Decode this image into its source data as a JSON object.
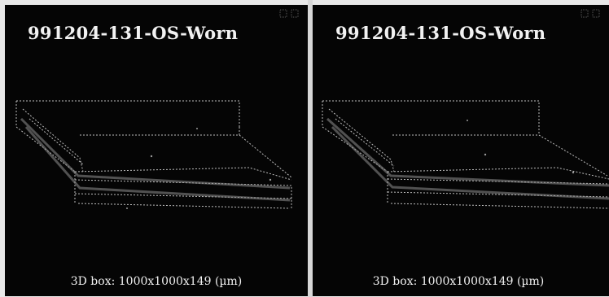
{
  "panels": [
    {
      "title": "991204-131-OS-Worn",
      "caption": "3D box: 1000x1000x149 (µm)"
    },
    {
      "title": "991204-131-OS-Worn",
      "caption": "3D box: 1000x1000x149 (µm)"
    }
  ],
  "colors": {
    "panel_background": "#050505",
    "text": "#f0f0f0",
    "wireframe": "#cfcfcf",
    "page_background": "#e9e9e9"
  }
}
